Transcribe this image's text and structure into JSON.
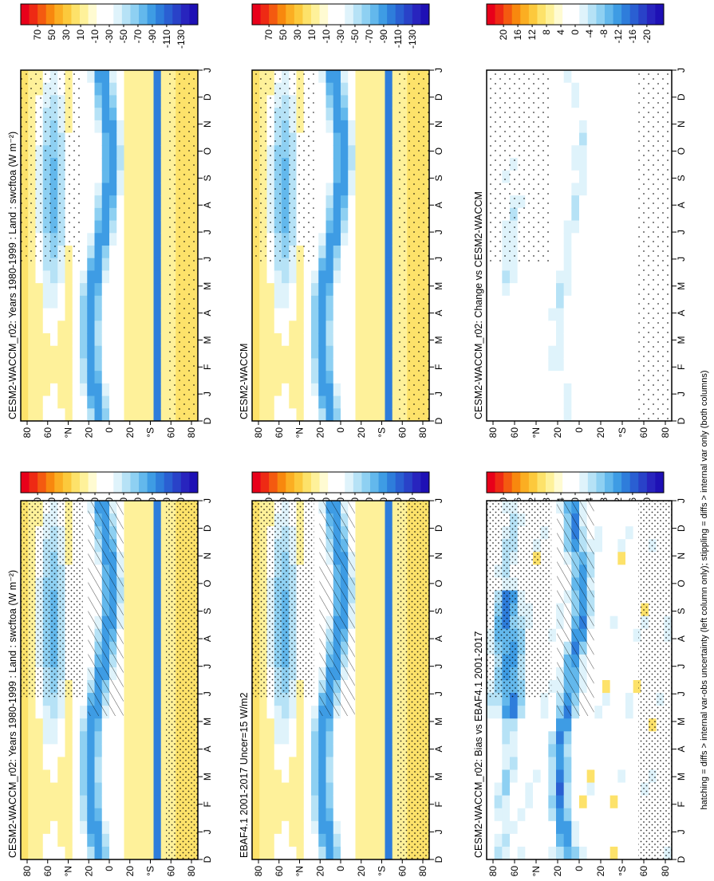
{
  "figure": {
    "caption": "hatching = diffs > internal var-obs uncertainty (left column only); stippling = diffs > internal var only (both columns)"
  },
  "colorbars": {
    "climatology": {
      "labels": [
        "70",
        "50",
        "30",
        "10",
        "-10",
        "-30",
        "-50",
        "-70",
        "-90",
        "-110",
        "-130"
      ],
      "colors": [
        "#e8001a",
        "#ee2a14",
        "#f45a10",
        "#f8880e",
        "#fbae22",
        "#fcc93c",
        "#fde26a",
        "#fef19a",
        "#fffbd2",
        "#ffffff",
        "#ffffff",
        "#dff3fb",
        "#b6e2f6",
        "#8ed0f2",
        "#63b8ec",
        "#3e9ce4",
        "#2e7ddb",
        "#2a5fd2",
        "#2942c8",
        "#2824be",
        "#1e10b5"
      ]
    },
    "difference": {
      "labels": [
        "20",
        "16",
        "12",
        "8",
        "4",
        "0",
        "-4",
        "-8",
        "-12",
        "-16",
        "-20"
      ],
      "colors": [
        "#e8001a",
        "#ee2a14",
        "#f45a10",
        "#f8880e",
        "#fbae22",
        "#fcc93c",
        "#fde26a",
        "#fef19a",
        "#fffbd2",
        "#ffffff",
        "#ffffff",
        "#dff3fb",
        "#b6e2f6",
        "#8ed0f2",
        "#63b8ec",
        "#3e9ce4",
        "#2e7ddb",
        "#2a5fd2",
        "#2942c8",
        "#2824be",
        "#1e10b5"
      ]
    }
  },
  "axes": {
    "months": [
      "D",
      "J",
      "F",
      "M",
      "A",
      "M",
      "J",
      "J",
      "A",
      "S",
      "O",
      "N",
      "D",
      "J"
    ],
    "lat_ticks": [
      "80",
      "60",
      "°N",
      "20",
      "0",
      "20",
      "°S",
      "60",
      "80"
    ]
  },
  "chart_data": [
    {
      "type": "heatmap",
      "panel": "top-left",
      "colorbar": "climatology",
      "title": "CESM2-WACCM_r02: Years 1980-1999 : Land : swcftoa (W m⁻²)",
      "x": [
        "D",
        "J",
        "F",
        "M",
        "A",
        "M",
        "J",
        "J",
        "A",
        "S",
        "O",
        "N",
        "D",
        "J"
      ],
      "y_ticks": [
        "80",
        "60",
        "°N",
        "20",
        "0",
        "20",
        "°S",
        "60",
        "80"
      ],
      "hatching": true,
      "stippling": true
    },
    {
      "type": "heatmap",
      "panel": "top-right",
      "colorbar": "climatology",
      "title": "CESM2-WACCM_r02: Years 1980-1999 : Land : swcftoa (W m⁻²)",
      "x": [
        "D",
        "J",
        "F",
        "M",
        "A",
        "M",
        "J",
        "J",
        "A",
        "S",
        "O",
        "N",
        "D",
        "J"
      ],
      "y_ticks": [
        "80",
        "60",
        "°N",
        "20",
        "0",
        "20",
        "°S",
        "60",
        "80"
      ],
      "hatching": false,
      "stippling": true
    },
    {
      "type": "heatmap",
      "panel": "middle-left",
      "colorbar": "climatology",
      "title": "EBAF4.1 2001-2017 Uncer=15 W/m2",
      "x": [
        "D",
        "J",
        "F",
        "M",
        "A",
        "M",
        "J",
        "J",
        "A",
        "S",
        "O",
        "N",
        "D",
        "J"
      ],
      "y_ticks": [
        "80",
        "60",
        "°N",
        "20",
        "0",
        "20",
        "°S",
        "60",
        "80"
      ],
      "hatching": true,
      "stippling": true
    },
    {
      "type": "heatmap",
      "panel": "middle-right",
      "colorbar": "climatology",
      "title": "CESM2-WACCM",
      "x": [
        "D",
        "J",
        "F",
        "M",
        "A",
        "M",
        "J",
        "J",
        "A",
        "S",
        "O",
        "N",
        "D",
        "J"
      ],
      "y_ticks": [
        "80",
        "60",
        "°N",
        "20",
        "0",
        "20",
        "°S",
        "60",
        "80"
      ],
      "hatching": false,
      "stippling": true
    },
    {
      "type": "heatmap",
      "panel": "bottom-left",
      "colorbar": "difference",
      "title": "CESM2-WACCM_r02: Bias vs EBAF4.1 2001-2017",
      "x": [
        "D",
        "J",
        "F",
        "M",
        "A",
        "M",
        "J",
        "J",
        "A",
        "S",
        "O",
        "N",
        "D",
        "J"
      ],
      "y_ticks": [
        "80",
        "60",
        "°N",
        "20",
        "0",
        "20",
        "°S",
        "60",
        "80"
      ],
      "hatching": true,
      "stippling": true
    },
    {
      "type": "heatmap",
      "panel": "bottom-right",
      "colorbar": "difference",
      "title": "CESM2-WACCM_r02: Change vs CESM2-WACCM",
      "x": [
        "D",
        "J",
        "F",
        "M",
        "A",
        "M",
        "J",
        "J",
        "A",
        "S",
        "O",
        "N",
        "D",
        "J"
      ],
      "y_ticks": [
        "80",
        "60",
        "°N",
        "20",
        "0",
        "20",
        "°S",
        "60",
        "80"
      ],
      "hatching": false,
      "stippling": true
    }
  ]
}
